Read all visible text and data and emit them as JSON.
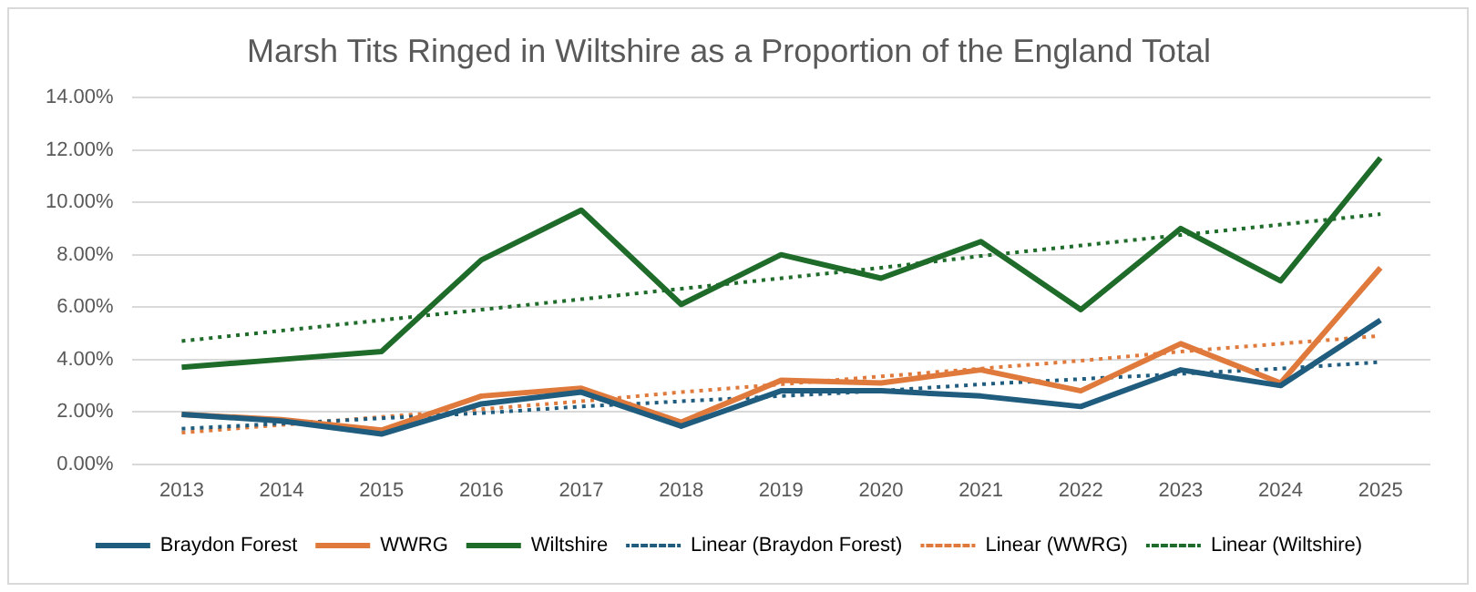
{
  "chart_data": {
    "type": "line",
    "title": "Marsh Tits Ringed in Wiltshire as a Proportion of the England Total",
    "categories": [
      "2013",
      "2014",
      "2015",
      "2016",
      "2017",
      "2018",
      "2019",
      "2020",
      "2021",
      "2022",
      "2023",
      "2024",
      "2025"
    ],
    "series": [
      {
        "name": "Braydon Forest",
        "color": "#1f5c7e",
        "values": [
          1.9,
          1.65,
          1.15,
          2.3,
          2.75,
          1.45,
          2.8,
          2.8,
          2.6,
          2.2,
          3.6,
          3.0,
          5.5
        ]
      },
      {
        "name": "WWRG",
        "color": "#e07a3c",
        "values": [
          1.9,
          1.7,
          1.3,
          2.6,
          2.9,
          1.6,
          3.2,
          3.1,
          3.6,
          2.8,
          4.6,
          3.1,
          7.5
        ]
      },
      {
        "name": "Wiltshire",
        "color": "#1e6b2a",
        "values": [
          3.7,
          4.0,
          4.3,
          7.8,
          9.7,
          6.1,
          8.0,
          7.1,
          8.5,
          5.9,
          9.0,
          7.0,
          11.7
        ]
      },
      {
        "name": "Linear (Braydon Forest)",
        "type": "line",
        "line_style": "dotted",
        "color": "#1f5c7e",
        "values": [
          1.35,
          1.55,
          1.75,
          1.95,
          2.2,
          2.4,
          2.6,
          2.8,
          3.05,
          3.25,
          3.45,
          3.65,
          3.9
        ]
      },
      {
        "name": "Linear (WWRG)",
        "type": "line",
        "line_style": "dotted",
        "color": "#e07a3c",
        "values": [
          1.2,
          1.5,
          1.8,
          2.1,
          2.4,
          2.75,
          3.05,
          3.35,
          3.65,
          3.95,
          4.3,
          4.6,
          4.9
        ]
      },
      {
        "name": "Linear (Wiltshire)",
        "type": "line",
        "line_style": "dotted",
        "color": "#1e6b2a",
        "values": [
          4.7,
          5.1,
          5.5,
          5.9,
          6.3,
          6.7,
          7.1,
          7.5,
          7.95,
          8.35,
          8.75,
          9.15,
          9.55
        ]
      }
    ],
    "ylim": [
      0,
      14
    ],
    "yticks": [
      {
        "value": 0,
        "label": "0.00%"
      },
      {
        "value": 2,
        "label": "2.00%"
      },
      {
        "value": 4,
        "label": "4.00%"
      },
      {
        "value": 6,
        "label": "6.00%"
      },
      {
        "value": 8,
        "label": "8.00%"
      },
      {
        "value": 10,
        "label": "10.00%"
      },
      {
        "value": 12,
        "label": "12.00%"
      },
      {
        "value": 14,
        "label": "14.00%"
      }
    ],
    "grid": "y",
    "legend": "bottom",
    "marker": "none",
    "line_style": "solid"
  }
}
